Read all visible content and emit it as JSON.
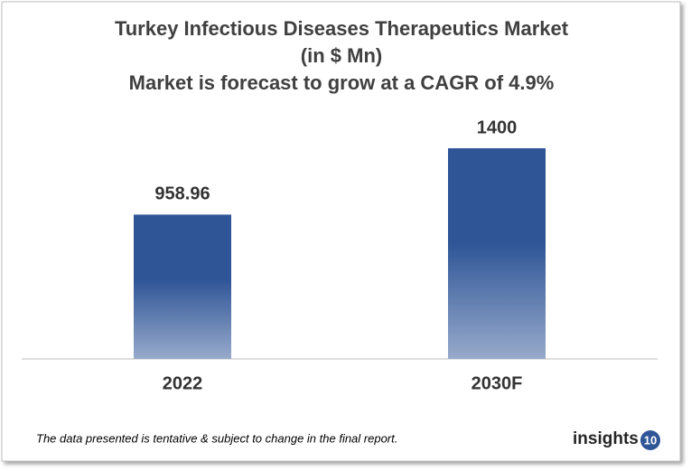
{
  "chart_data": {
    "type": "bar",
    "title": "Turkey Infectious Diseases Therapeutics Market",
    "unit": "(in $ Mn)",
    "subtitle": "Market is forecast to grow at a CAGR of 4.9%",
    "categories": [
      "2022",
      "2030F"
    ],
    "values": [
      958.96,
      1400
    ],
    "color": "#2f5597"
  },
  "footnote": "The data presented is tentative & subject to change in the final report.",
  "brand": {
    "text": "insights",
    "badge": "10"
  }
}
